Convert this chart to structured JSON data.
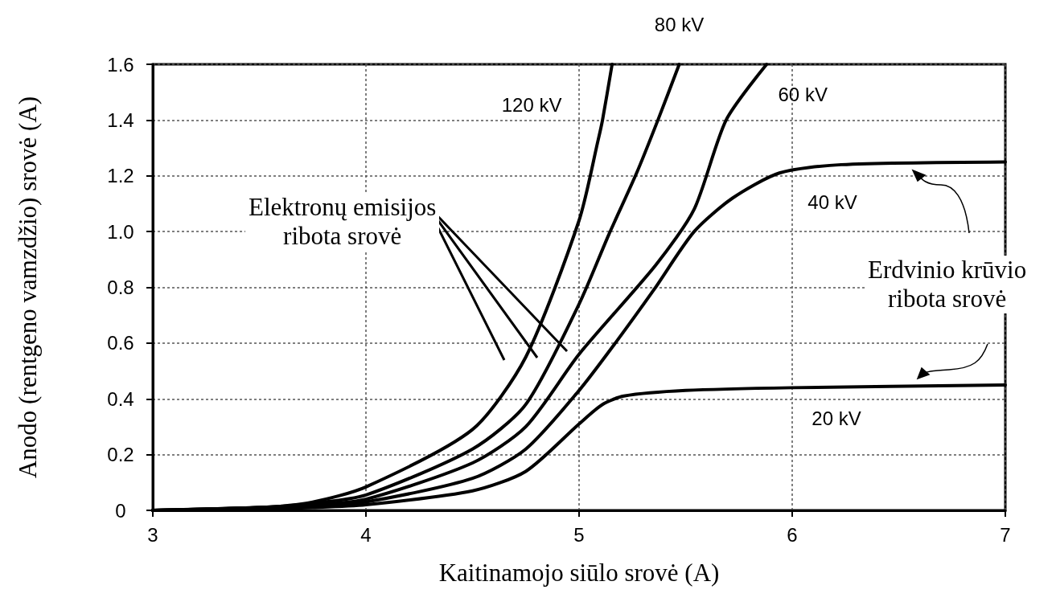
{
  "chart_data": {
    "type": "line",
    "xlabel": "Kaitinamojo siūlo srovė (A)",
    "ylabel": "Anodo (rentgeno vamzdžio) srovė (A)",
    "xlim": [
      3,
      7
    ],
    "xticks": [
      3,
      4,
      5,
      6,
      7
    ],
    "ylim": [
      0,
      1.6
    ],
    "yticks": [
      0,
      0.2,
      0.4,
      0.6,
      0.8,
      {
        "value": 1,
        "label": "1.0"
      },
      1.2,
      1.4,
      1.6
    ],
    "grid": true,
    "legend": false,
    "marker": "none",
    "line_style": "solid",
    "series": [
      {
        "name": "120 kV",
        "color": "#000000",
        "x": [
          3,
          3.5,
          3.75,
          4,
          4.5,
          4.75,
          5,
          5.09,
          5.11,
          5.155
        ],
        "values": [
          0,
          0.01,
          0.03,
          0.084,
          0.29,
          0.55,
          1.04,
          1.33,
          1.4,
          1.6
        ]
      },
      {
        "name": "80 kV",
        "color": "#000000",
        "x": [
          3,
          3.5,
          3.75,
          4,
          4.5,
          4.75,
          5,
          5.14,
          5.27,
          5.37,
          5.47
        ],
        "values": [
          0,
          0.01,
          0.025,
          0.055,
          0.22,
          0.38,
          0.74,
          0.99,
          1.21,
          1.4,
          1.6
        ]
      },
      {
        "name": "60 kV",
        "color": "#000000",
        "x": [
          3,
          3.5,
          3.75,
          4,
          4.5,
          4.75,
          5,
          5.36,
          5.54,
          5.69,
          5.88
        ],
        "values": [
          0,
          0.01,
          0.02,
          0.04,
          0.17,
          0.3,
          0.56,
          0.88,
          1.08,
          1.4,
          1.6
        ]
      },
      {
        "name": "40 kV",
        "color": "#000000",
        "x": [
          3,
          3.5,
          3.75,
          4,
          4.5,
          4.75,
          5,
          5.17,
          5.35,
          5.54,
          5.72,
          5.94,
          6.23,
          7
        ],
        "values": [
          0,
          0.01,
          0.015,
          0.03,
          0.115,
          0.22,
          0.43,
          0.6,
          0.79,
          1.0,
          1.12,
          1.21,
          1.24,
          1.25
        ]
      },
      {
        "name": "20 kV",
        "color": "#000000",
        "x": [
          3,
          3.5,
          3.75,
          4,
          4.5,
          4.75,
          5,
          5.11,
          5.21,
          5.5,
          6,
          7
        ],
        "values": [
          0,
          0.005,
          0.01,
          0.02,
          0.07,
          0.14,
          0.31,
          0.38,
          0.41,
          0.43,
          0.44,
          0.45
        ]
      }
    ],
    "annotations": [
      "Elektronų emisijos\nribota srovė",
      "Erdvinio krūvio\nribota srovė"
    ]
  }
}
